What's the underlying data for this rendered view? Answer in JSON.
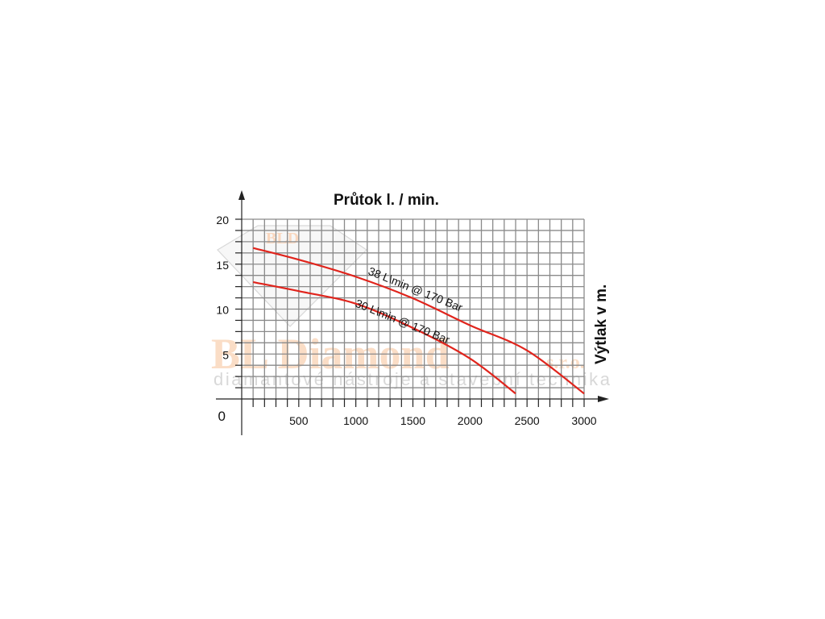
{
  "chart_data": {
    "type": "line",
    "title": "Průtok l. / min.",
    "xlabel": "Průtok l. / min.",
    "ylabel": "Výtlak v m.",
    "xlim": [
      0,
      3000
    ],
    "ylim": [
      0,
      20
    ],
    "x_ticks": [
      "500",
      "1000",
      "1500",
      "2000",
      "2500",
      "3000"
    ],
    "y_ticks": [
      "0",
      "5",
      "10",
      "15",
      "20"
    ],
    "grid": true,
    "series": [
      {
        "name": "38 L\\min @ 170 Bar",
        "color": "#e0241c",
        "x": [
          100,
          500,
          1000,
          1500,
          2000,
          2500,
          3000
        ],
        "y": [
          16.8,
          15.5,
          13.6,
          11.2,
          8.2,
          5.4,
          0.6
        ]
      },
      {
        "name": "30 L\\min @ 170 Bar",
        "color": "#e0241c",
        "x": [
          100,
          500,
          1000,
          1500,
          2000,
          2400
        ],
        "y": [
          13.0,
          12.0,
          10.6,
          7.9,
          4.5,
          0.6
        ]
      }
    ]
  },
  "watermark": {
    "logo": "BLD",
    "brand": "BL Diamond",
    "suffix": "s.r.o.",
    "tagline": "diamantové nástroje a stavební technika"
  }
}
